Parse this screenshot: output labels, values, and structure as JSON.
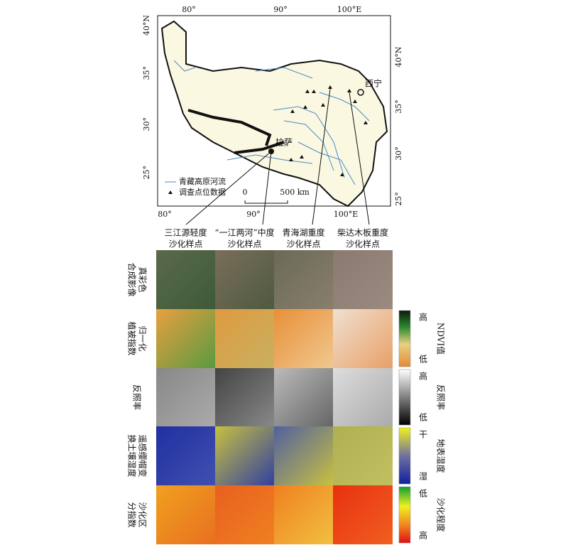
{
  "map": {
    "lat_left": [
      "40°N",
      "35°",
      "30°",
      "25°"
    ],
    "lon_top": [
      "80°",
      "90°",
      "100°E"
    ],
    "lon_bottom": [
      "80°",
      "90°",
      "100°E"
    ],
    "lat_right": [
      "40°N",
      "35°",
      "30°",
      "25°"
    ],
    "cities": [
      "西宁",
      "拉萨"
    ],
    "legend": [
      "青藏高原河流",
      "调查点位数据"
    ],
    "scale": [
      "0",
      "500 km"
    ]
  },
  "columns": [
    [
      "三江源轻度",
      "沙化样点"
    ],
    [
      "“一江两河”中度",
      "沙化样点"
    ],
    [
      "青海湖重度",
      "沙化样点"
    ],
    [
      "柴达木板重度",
      "沙化样点"
    ]
  ],
  "rows": [
    [
      "真彩色",
      "合成影像"
    ],
    [
      "归一化",
      "植被指数"
    ],
    [
      "反照率"
    ],
    [
      "遥感缨帽变",
      "换土壤湿度"
    ],
    [
      "沙化区",
      "分指数"
    ]
  ],
  "colorbars": [
    {
      "top": "高",
      "bottom": "低",
      "title": "NDVI值"
    },
    {
      "top": "高",
      "bottom": "低",
      "title": "反照率"
    },
    {
      "top": "干",
      "bottom": "湿",
      "title": "地表湿度"
    },
    {
      "top": "低",
      "bottom": "高",
      "title": "沙化程度"
    }
  ]
}
